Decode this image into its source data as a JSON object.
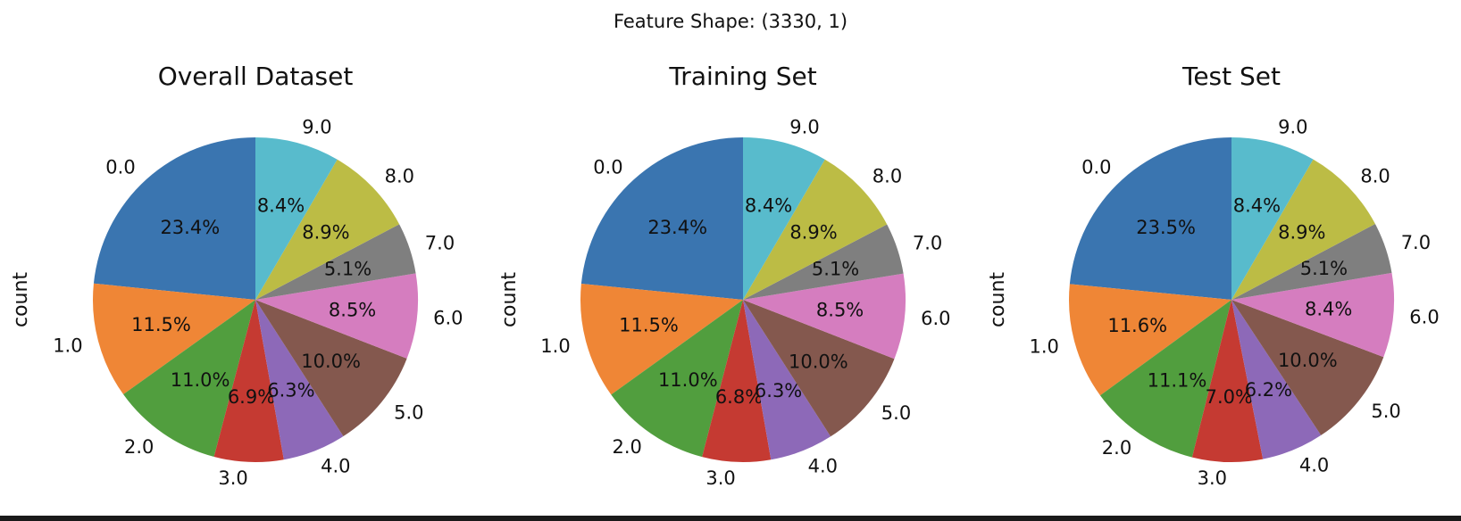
{
  "figure": {
    "suptitle": "Feature Shape: (3330, 1)"
  },
  "chart_data": [
    {
      "type": "pie",
      "title": "Overall Dataset",
      "ylabel": "count",
      "labels": [
        "0.0",
        "1.0",
        "2.0",
        "3.0",
        "4.0",
        "5.0",
        "6.0",
        "7.0",
        "8.0",
        "9.0"
      ],
      "values": [
        23.4,
        11.5,
        11.0,
        6.9,
        6.3,
        10.0,
        8.5,
        5.1,
        8.9,
        8.4
      ],
      "pct_labels": [
        "23.4%",
        "11.5%",
        "11.0%",
        "6.9%",
        "6.3%",
        "10.0%",
        "8.5%",
        "5.1%",
        "8.9%",
        "8.4%"
      ],
      "startangle": 90,
      "direction": "counterclockwise"
    },
    {
      "type": "pie",
      "title": "Training Set",
      "ylabel": "count",
      "labels": [
        "0.0",
        "1.0",
        "2.0",
        "3.0",
        "4.0",
        "5.0",
        "6.0",
        "7.0",
        "8.0",
        "9.0"
      ],
      "values": [
        23.4,
        11.5,
        11.0,
        6.8,
        6.3,
        10.0,
        8.5,
        5.1,
        8.9,
        8.4
      ],
      "pct_labels": [
        "23.4%",
        "11.5%",
        "11.0%",
        "6.8%",
        "6.3%",
        "10.0%",
        "8.5%",
        "5.1%",
        "8.9%",
        "8.4%"
      ],
      "startangle": 90,
      "direction": "counterclockwise"
    },
    {
      "type": "pie",
      "title": "Test Set",
      "ylabel": "count",
      "labels": [
        "0.0",
        "1.0",
        "2.0",
        "3.0",
        "4.0",
        "5.0",
        "6.0",
        "7.0",
        "8.0",
        "9.0"
      ],
      "values": [
        23.5,
        11.6,
        11.1,
        7.0,
        6.2,
        10.0,
        8.4,
        5.1,
        8.9,
        8.4
      ],
      "pct_labels": [
        "23.5%",
        "11.6%",
        "11.1%",
        "7.0%",
        "6.2%",
        "10.0%",
        "8.4%",
        "5.1%",
        "8.9%",
        "8.4%"
      ],
      "startangle": 90,
      "direction": "counterclockwise"
    }
  ],
  "colors": [
    "#3a75b0",
    "#ef8636",
    "#519e3e",
    "#c53a32",
    "#8d69b8",
    "#84584e",
    "#d57dbf",
    "#7f7f7f",
    "#bcbc45",
    "#58bbcc"
  ]
}
